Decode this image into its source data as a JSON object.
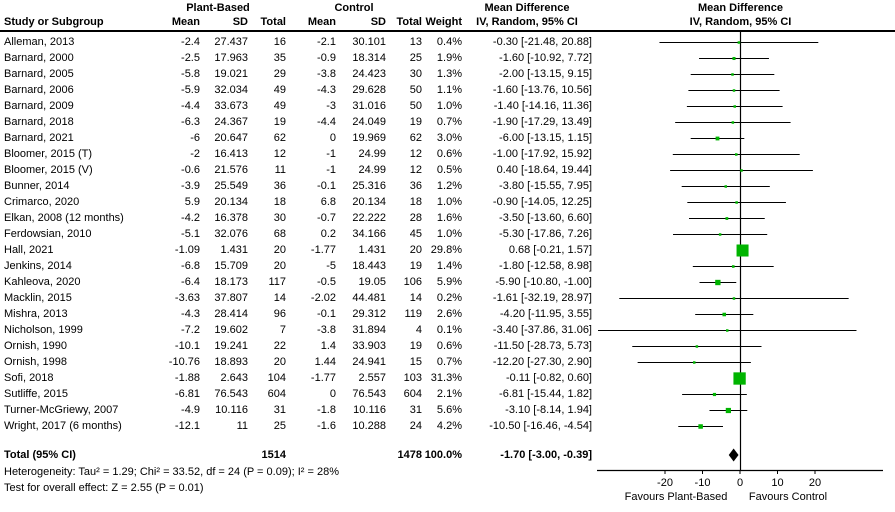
{
  "header": {
    "group_plant": "Plant-Based",
    "group_control": "Control",
    "col_study": "Study or Subgroup",
    "col_mean": "Mean",
    "col_sd": "SD",
    "col_total": "Total",
    "col_weight": "Weight",
    "md_title": "Mean Difference",
    "md_subtitle": "IV, Random, 95% CI"
  },
  "chart_data": {
    "type": "forest",
    "effect_measure": "Mean Difference (IV, Random, 95% CI)",
    "x_axis": {
      "ticks": [
        -20,
        -10,
        0,
        10,
        20
      ],
      "range": [
        -38.5,
        38.5
      ],
      "favours_left": "Favours Plant-Based",
      "favours_right": "Favours Control"
    },
    "studies": [
      {
        "name": "Alleman, 2013",
        "mean1": "-2.4",
        "sd1": "27.437",
        "n1": "16",
        "mean2": "-2.1",
        "sd2": "30.101",
        "n2": "13",
        "weight": "0.4%",
        "ci_text": "-0.30 [-21.48, 20.88]",
        "est": -0.3,
        "lo": -21.48,
        "hi": 20.88,
        "w": 0.4
      },
      {
        "name": "Barnard, 2000",
        "mean1": "-2.5",
        "sd1": "17.963",
        "n1": "35",
        "mean2": "-0.9",
        "sd2": "18.314",
        "n2": "25",
        "weight": "1.9%",
        "ci_text": "-1.60 [-10.92, 7.72]",
        "est": -1.6,
        "lo": -10.92,
        "hi": 7.72,
        "w": 1.9
      },
      {
        "name": "Barnard, 2005",
        "mean1": "-5.8",
        "sd1": "19.021",
        "n1": "29",
        "mean2": "-3.8",
        "sd2": "24.423",
        "n2": "30",
        "weight": "1.3%",
        "ci_text": "-2.00 [-13.15, 9.15]",
        "est": -2.0,
        "lo": -13.15,
        "hi": 9.15,
        "w": 1.3
      },
      {
        "name": "Barnard, 2006",
        "mean1": "-5.9",
        "sd1": "32.034",
        "n1": "49",
        "mean2": "-4.3",
        "sd2": "29.628",
        "n2": "50",
        "weight": "1.1%",
        "ci_text": "-1.60 [-13.76, 10.56]",
        "est": -1.6,
        "lo": -13.76,
        "hi": 10.56,
        "w": 1.1
      },
      {
        "name": "Barnard, 2009",
        "mean1": "-4.4",
        "sd1": "33.673",
        "n1": "49",
        "mean2": "-3",
        "sd2": "31.016",
        "n2": "50",
        "weight": "1.0%",
        "ci_text": "-1.40 [-14.16, 11.36]",
        "est": -1.4,
        "lo": -14.16,
        "hi": 11.36,
        "w": 1.0
      },
      {
        "name": "Barnard, 2018",
        "mean1": "-6.3",
        "sd1": "24.367",
        "n1": "19",
        "mean2": "-4.4",
        "sd2": "24.049",
        "n2": "19",
        "weight": "0.7%",
        "ci_text": "-1.90 [-17.29, 13.49]",
        "est": -1.9,
        "lo": -17.29,
        "hi": 13.49,
        "w": 0.7
      },
      {
        "name": "Barnard, 2021",
        "mean1": "-6",
        "sd1": "20.647",
        "n1": "62",
        "mean2": "0",
        "sd2": "19.969",
        "n2": "62",
        "weight": "3.0%",
        "ci_text": "-6.00 [-13.15, 1.15]",
        "est": -6.0,
        "lo": -13.15,
        "hi": 1.15,
        "w": 3.0
      },
      {
        "name": "Bloomer, 2015 (T)",
        "mean1": "-2",
        "sd1": "16.413",
        "n1": "12",
        "mean2": "-1",
        "sd2": "24.99",
        "n2": "12",
        "weight": "0.6%",
        "ci_text": "-1.00 [-17.92, 15.92]",
        "est": -1.0,
        "lo": -17.92,
        "hi": 15.92,
        "w": 0.6
      },
      {
        "name": "Bloomer, 2015 (V)",
        "mean1": "-0.6",
        "sd1": "21.576",
        "n1": "11",
        "mean2": "-1",
        "sd2": "24.99",
        "n2": "12",
        "weight": "0.5%",
        "ci_text": "0.40 [-18.64, 19.44]",
        "est": 0.4,
        "lo": -18.64,
        "hi": 19.44,
        "w": 0.5
      },
      {
        "name": "Bunner, 2014",
        "mean1": "-3.9",
        "sd1": "25.549",
        "n1": "36",
        "mean2": "-0.1",
        "sd2": "25.316",
        "n2": "36",
        "weight": "1.2%",
        "ci_text": "-3.80 [-15.55, 7.95]",
        "est": -3.8,
        "lo": -15.55,
        "hi": 7.95,
        "w": 1.2
      },
      {
        "name": "Crimarco, 2020",
        "mean1": "5.9",
        "sd1": "20.134",
        "n1": "18",
        "mean2": "6.8",
        "sd2": "20.134",
        "n2": "18",
        "weight": "1.0%",
        "ci_text": "-0.90 [-14.05, 12.25]",
        "est": -0.9,
        "lo": -14.05,
        "hi": 12.25,
        "w": 1.0
      },
      {
        "name": "Elkan, 2008 (12 months)",
        "mean1": "-4.2",
        "sd1": "16.378",
        "n1": "30",
        "mean2": "-0.7",
        "sd2": "22.222",
        "n2": "28",
        "weight": "1.6%",
        "ci_text": "-3.50 [-13.60, 6.60]",
        "est": -3.5,
        "lo": -13.6,
        "hi": 6.6,
        "w": 1.6
      },
      {
        "name": "Ferdowsian, 2010",
        "mean1": "-5.1",
        "sd1": "32.076",
        "n1": "68",
        "mean2": "0.2",
        "sd2": "34.166",
        "n2": "45",
        "weight": "1.0%",
        "ci_text": "-5.30 [-17.86, 7.26]",
        "est": -5.3,
        "lo": -17.86,
        "hi": 7.26,
        "w": 1.0
      },
      {
        "name": "Hall, 2021",
        "mean1": "-1.09",
        "sd1": "1.431",
        "n1": "20",
        "mean2": "-1.77",
        "sd2": "1.431",
        "n2": "20",
        "weight": "29.8%",
        "ci_text": "0.68 [-0.21, 1.57]",
        "est": 0.68,
        "lo": -0.21,
        "hi": 1.57,
        "w": 29.8
      },
      {
        "name": "Jenkins, 2014",
        "mean1": "-6.8",
        "sd1": "15.709",
        "n1": "20",
        "mean2": "-5",
        "sd2": "18.443",
        "n2": "19",
        "weight": "1.4%",
        "ci_text": "-1.80 [-12.58, 8.98]",
        "est": -1.8,
        "lo": -12.58,
        "hi": 8.98,
        "w": 1.4
      },
      {
        "name": "Kahleova, 2020",
        "mean1": "-6.4",
        "sd1": "18.173",
        "n1": "117",
        "mean2": "-0.5",
        "sd2": "19.05",
        "n2": "106",
        "weight": "5.9%",
        "ci_text": "-5.90 [-10.80, -1.00]",
        "est": -5.9,
        "lo": -10.8,
        "hi": -1.0,
        "w": 5.9
      },
      {
        "name": "Macklin, 2015",
        "mean1": "-3.63",
        "sd1": "37.807",
        "n1": "14",
        "mean2": "-2.02",
        "sd2": "44.481",
        "n2": "14",
        "weight": "0.2%",
        "ci_text": "-1.61 [-32.19, 28.97]",
        "est": -1.61,
        "lo": -32.19,
        "hi": 28.97,
        "w": 0.2
      },
      {
        "name": "Mishra, 2013",
        "mean1": "-4.3",
        "sd1": "28.414",
        "n1": "96",
        "mean2": "-0.1",
        "sd2": "29.312",
        "n2": "119",
        "weight": "2.6%",
        "ci_text": "-4.20 [-11.95, 3.55]",
        "est": -4.2,
        "lo": -11.95,
        "hi": 3.55,
        "w": 2.6
      },
      {
        "name": "Nicholson, 1999",
        "mean1": "-7.2",
        "sd1": "19.602",
        "n1": "7",
        "mean2": "-3.8",
        "sd2": "31.894",
        "n2": "4",
        "weight": "0.1%",
        "ci_text": "-3.40 [-37.86, 31.06]",
        "est": -3.4,
        "lo": -37.86,
        "hi": 31.06,
        "w": 0.1
      },
      {
        "name": "Ornish, 1990",
        "mean1": "-10.1",
        "sd1": "19.241",
        "n1": "22",
        "mean2": "1.4",
        "sd2": "33.903",
        "n2": "19",
        "weight": "0.6%",
        "ci_text": "-11.50 [-28.73, 5.73]",
        "est": -11.5,
        "lo": -28.73,
        "hi": 5.73,
        "w": 0.6
      },
      {
        "name": "Ornish, 1998",
        "mean1": "-10.76",
        "sd1": "18.893",
        "n1": "20",
        "mean2": "1.44",
        "sd2": "24.941",
        "n2": "15",
        "weight": "0.7%",
        "ci_text": "-12.20 [-27.30, 2.90]",
        "est": -12.2,
        "lo": -27.3,
        "hi": 2.9,
        "w": 0.7
      },
      {
        "name": "Sofi, 2018",
        "mean1": "-1.88",
        "sd1": "2.643",
        "n1": "104",
        "mean2": "-1.77",
        "sd2": "2.557",
        "n2": "103",
        "weight": "31.3%",
        "ci_text": "-0.11 [-0.82, 0.60]",
        "est": -0.11,
        "lo": -0.82,
        "hi": 0.6,
        "w": 31.3
      },
      {
        "name": "Sutliffe, 2015",
        "mean1": "-6.81",
        "sd1": "76.543",
        "n1": "604",
        "mean2": "0",
        "sd2": "76.543",
        "n2": "604",
        "weight": "2.1%",
        "ci_text": "-6.81 [-15.44, 1.82]",
        "est": -6.81,
        "lo": -15.44,
        "hi": 1.82,
        "w": 2.1
      },
      {
        "name": "Turner-McGriewy, 2007",
        "mean1": "-4.9",
        "sd1": "10.116",
        "n1": "31",
        "mean2": "-1.8",
        "sd2": "10.116",
        "n2": "31",
        "weight": "5.6%",
        "ci_text": "-3.10 [-8.14, 1.94]",
        "est": -3.1,
        "lo": -8.14,
        "hi": 1.94,
        "w": 5.6
      },
      {
        "name": "Wright, 2017 (6 months)",
        "mean1": "-12.1",
        "sd1": "11",
        "n1": "25",
        "mean2": "-1.6",
        "sd2": "10.288",
        "n2": "24",
        "weight": "4.2%",
        "ci_text": "-10.50 [-16.46, -4.54]",
        "est": -10.5,
        "lo": -16.46,
        "hi": -4.54,
        "w": 4.2
      }
    ],
    "total": {
      "label": "Total (95% CI)",
      "n1": "1514",
      "n2": "1478",
      "weight": "100.0%",
      "ci_text": "-1.70 [-3.00, -0.39]",
      "est": -1.7,
      "lo": -3.0,
      "hi": -0.39
    },
    "footnotes": {
      "heterogeneity": "Heterogeneity: Tau² = 1.29; Chi² = 33.52, df = 24 (P = 0.09); I² = 28%",
      "overall_effect": "Test for overall effect: Z = 2.55 (P = 0.01)"
    },
    "colors": {
      "marker": "#00b400",
      "diamond": "#000000",
      "line": "#000000"
    }
  }
}
